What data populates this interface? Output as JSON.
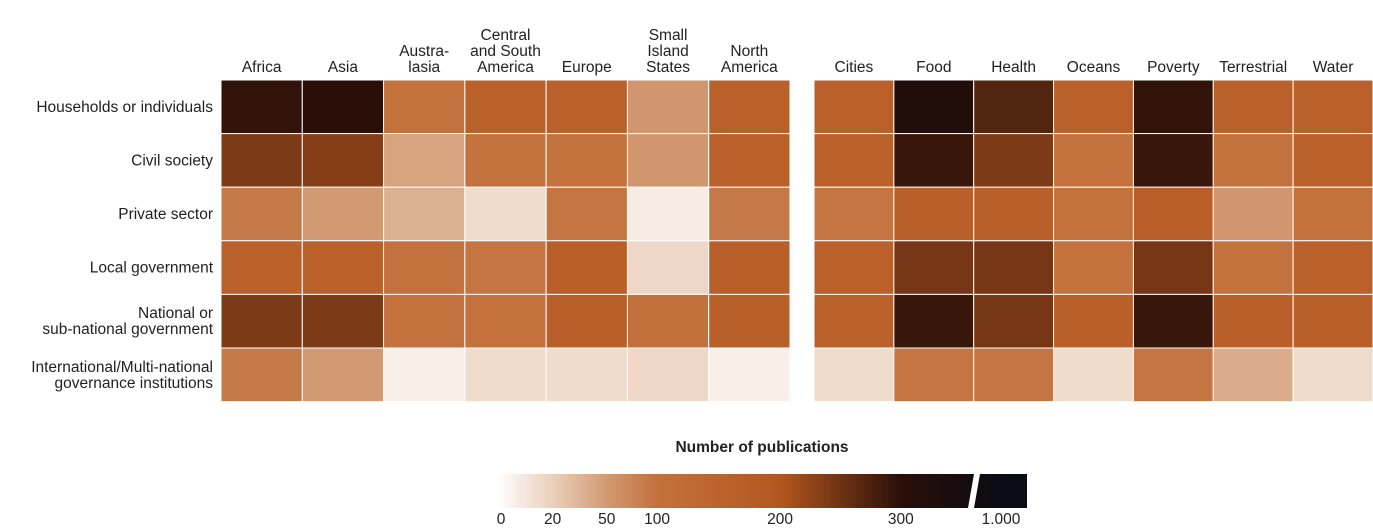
{
  "chart_data": {
    "type": "heatmap",
    "rows": [
      "Households or individuals",
      "Civil society",
      "Private sector",
      "Local government",
      "National or\nsub-national government",
      "International/Multi-national\ngovernance institutions"
    ],
    "panels": [
      {
        "columns": [
          "Africa",
          "Asia",
          "Austra-\nlasia",
          "Central\nand South\nAmerica",
          "Europe",
          "Small\nIsland\nStates",
          "North\nAmerica"
        ],
        "values": [
          [
            295,
            300,
            100,
            160,
            160,
            55,
            160
          ],
          [
            240,
            235,
            45,
            100,
            100,
            55,
            160
          ],
          [
            90,
            50,
            38,
            15,
            95,
            8,
            90
          ],
          [
            160,
            160,
            100,
            95,
            170,
            17,
            165
          ],
          [
            240,
            240,
            100,
            100,
            165,
            105,
            165
          ],
          [
            90,
            50,
            7,
            15,
            15,
            17,
            7
          ]
        ]
      },
      {
        "columns": [
          "Cities",
          "Food",
          "Health",
          "Oceans",
          "Poverty",
          "Terrestrial",
          "Water"
        ],
        "values": [
          [
            160,
            500,
            270,
            160,
            295,
            160,
            160
          ],
          [
            160,
            290,
            240,
            100,
            290,
            100,
            160
          ],
          [
            95,
            165,
            165,
            100,
            170,
            55,
            100
          ],
          [
            160,
            245,
            245,
            100,
            245,
            100,
            160
          ],
          [
            160,
            290,
            245,
            165,
            290,
            165,
            165
          ],
          [
            15,
            95,
            95,
            15,
            95,
            40,
            15
          ]
        ]
      }
    ],
    "colorbar": {
      "title": "Number of publications",
      "ticks": [
        0,
        20,
        50,
        100,
        200,
        300,
        {
          "value": 1000,
          "label": "1.000"
        }
      ],
      "colors": [
        "#ffffff",
        "#ebd0bc",
        "#d29a72",
        "#c3713d",
        "#b4561f",
        "#2a0f08",
        "#0a0b14"
      ]
    }
  }
}
